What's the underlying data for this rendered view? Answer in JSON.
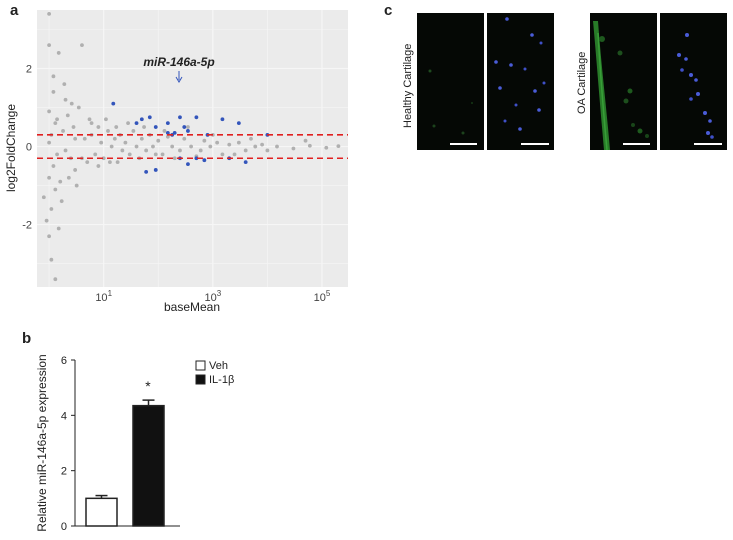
{
  "panels": {
    "a": "a",
    "b": "b",
    "c": "c"
  },
  "chart_data": [
    {
      "type": "scatter",
      "panel": "a",
      "xlabel": "baseMean",
      "ylabel": "log2FoldChange",
      "xscale": "log",
      "xticks": [
        {
          "base": "10",
          "exp": "1",
          "value": 10
        },
        {
          "base": "10",
          "exp": "3",
          "value": 1000
        },
        {
          "base": "10",
          "exp": "5",
          "value": 100000
        }
      ],
      "yticks": [
        -2,
        0,
        2
      ],
      "xlim": [
        0.6,
        300000
      ],
      "ylim": [
        -3.6,
        3.5
      ],
      "grid": true,
      "thresholds": [
        0.3,
        -0.3
      ],
      "annotation": "miR-146a-5p",
      "annotation_point": [
        220,
        1.85
      ],
      "series": [
        {
          "color": "#b0b0b0",
          "points": [
            [
              1,
              3.4
            ],
            [
              1,
              2.6
            ],
            [
              1.2,
              1.8
            ],
            [
              1.5,
              2.4
            ],
            [
              1.2,
              1.4
            ],
            [
              1,
              0.9
            ],
            [
              1.3,
              0.6
            ],
            [
              1.1,
              0.3
            ],
            [
              1,
              0.1
            ],
            [
              1.4,
              -0.2
            ],
            [
              1.2,
              -0.5
            ],
            [
              1,
              -0.8
            ],
            [
              1.3,
              -1.1
            ],
            [
              1.1,
              -1.6
            ],
            [
              0.8,
              -1.3
            ],
            [
              0.9,
              -1.9
            ],
            [
              1,
              -2.3
            ],
            [
              1.1,
              -2.9
            ],
            [
              1.3,
              -3.4
            ],
            [
              1.5,
              -2.1
            ],
            [
              1.6,
              -0.9
            ],
            [
              1.8,
              0.4
            ],
            [
              2,
              1.2
            ],
            [
              2.2,
              0.8
            ],
            [
              2.5,
              -0.3
            ],
            [
              2.8,
              0.5
            ],
            [
              3,
              -0.6
            ],
            [
              3.5,
              1
            ],
            [
              4,
              2.6
            ],
            [
              4.5,
              0.2
            ],
            [
              5,
              -0.4
            ],
            [
              5.5,
              0.7
            ],
            [
              6,
              0.3
            ],
            [
              7,
              -0.2
            ],
            [
              8,
              0.5
            ],
            [
              9,
              0.1
            ],
            [
              10,
              -0.3
            ],
            [
              12,
              0.4
            ],
            [
              14,
              0
            ],
            [
              16,
              0.2
            ],
            [
              18,
              -0.4
            ],
            [
              20,
              0.3
            ],
            [
              25,
              0.1
            ],
            [
              30,
              -0.2
            ],
            [
              35,
              0.4
            ],
            [
              40,
              0
            ],
            [
              50,
              0.2
            ],
            [
              60,
              -0.1
            ],
            [
              70,
              0.3
            ],
            [
              80,
              0
            ],
            [
              100,
              0.15
            ],
            [
              120,
              -0.2
            ],
            [
              150,
              0.25
            ],
            [
              180,
              0
            ],
            [
              250,
              -0.1
            ],
            [
              300,
              0.2
            ],
            [
              400,
              0
            ],
            [
              500,
              -0.25
            ],
            [
              700,
              0.15
            ],
            [
              900,
              0
            ],
            [
              1200,
              0.1
            ],
            [
              1500,
              -0.2
            ],
            [
              2000,
              0.05
            ],
            [
              3000,
              0.1
            ],
            [
              4000,
              -0.1
            ],
            [
              6000,
              0
            ],
            [
              8000,
              0.05
            ],
            [
              15000,
              0
            ],
            [
              30000,
              -0.05
            ],
            [
              60000,
              0.02
            ],
            [
              120000,
              -0.03
            ],
            [
              200000,
              0.01
            ],
            [
              2,
              -0.1
            ],
            [
              3,
              0.2
            ],
            [
              4,
              -0.3
            ],
            [
              6,
              0.6
            ],
            [
              8,
              -0.5
            ],
            [
              11,
              0.7
            ],
            [
              13,
              -0.4
            ],
            [
              17,
              0.5
            ],
            [
              22,
              -0.1
            ],
            [
              28,
              0.6
            ],
            [
              45,
              -0.3
            ],
            [
              55,
              0.5
            ],
            [
              90,
              -0.2
            ],
            [
              130,
              0.4
            ],
            [
              200,
              -0.3
            ],
            [
              350,
              0.5
            ],
            [
              600,
              -0.1
            ],
            [
              1000,
              0.3
            ],
            [
              2500,
              -0.2
            ],
            [
              5000,
              0.2
            ],
            [
              10000,
              -0.1
            ],
            [
              50000,
              0.15
            ],
            [
              1.7,
              -1.4
            ],
            [
              2.3,
              -0.8
            ],
            [
              1.9,
              1.6
            ],
            [
              2.6,
              1.1
            ],
            [
              3.2,
              -1.0
            ],
            [
              1.4,
              0.7
            ]
          ]
        },
        {
          "color": "#3355bb",
          "points": [
            [
              15,
              1.1
            ],
            [
              40,
              0.6
            ],
            [
              50,
              0.7
            ],
            [
              70,
              0.75
            ],
            [
              90,
              0.5
            ],
            [
              150,
              0.6
            ],
            [
              200,
              0.35
            ],
            [
              250,
              0.75
            ],
            [
              300,
              0.5
            ],
            [
              350,
              0.4
            ],
            [
              500,
              0.75
            ],
            [
              800,
              0.3
            ],
            [
              1500,
              0.7
            ],
            [
              3000,
              0.6
            ],
            [
              10000,
              0.3
            ],
            [
              60,
              -0.65
            ],
            [
              90,
              -0.6
            ],
            [
              250,
              -0.3
            ],
            [
              350,
              -0.45
            ],
            [
              700,
              -0.35
            ],
            [
              2000,
              -0.3
            ],
            [
              4000,
              -0.4
            ],
            [
              500,
              -0.3
            ],
            [
              150,
              0.35
            ],
            [
              180,
              0.3
            ]
          ]
        }
      ]
    },
    {
      "type": "bar",
      "panel": "b",
      "categories": [
        "Veh",
        "IL-1β"
      ],
      "values": [
        1,
        4.35
      ],
      "errors": [
        0.1,
        0.2
      ],
      "ylabel": "Relative miR-146a-5p expression",
      "ylim": [
        0,
        6
      ],
      "yticks": [
        0,
        2,
        4,
        6
      ],
      "colors": [
        "#ffffff",
        "#111111"
      ],
      "significance": "*",
      "legend": [
        {
          "label": "Veh",
          "fill": "#ffffff"
        },
        {
          "label": "IL-1β",
          "fill": "#111111"
        }
      ]
    }
  ],
  "panel_c": {
    "labels": [
      "Healthy Cartilage",
      "OA Cartilage"
    ]
  }
}
